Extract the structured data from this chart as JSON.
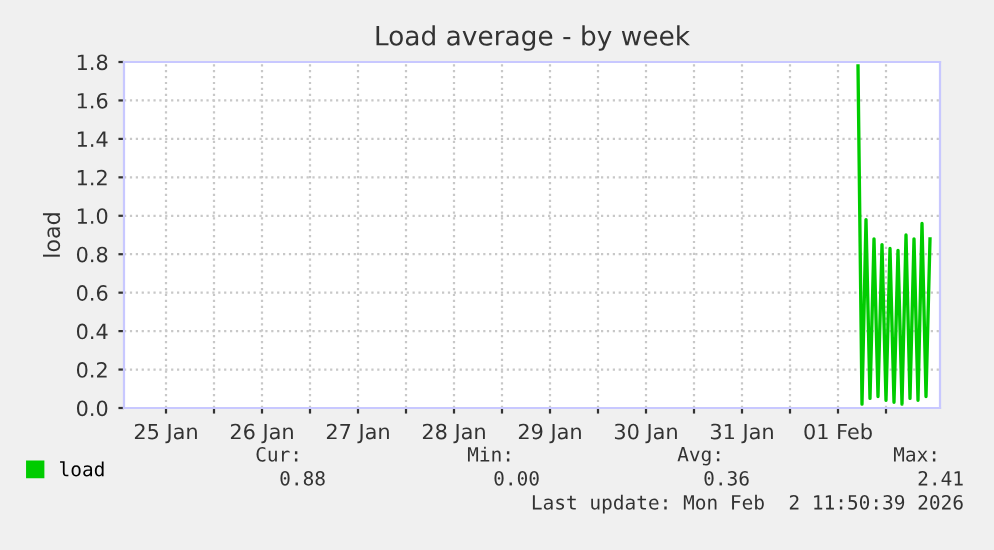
{
  "chart_data": {
    "type": "line",
    "title": "Load average - by week",
    "ylabel": "load",
    "x": [
      "2026-02-01T17:00",
      "2026-02-01T18:00",
      "2026-02-01T19:00",
      "2026-02-01T20:00",
      "2026-02-01T21:00",
      "2026-02-01T22:00",
      "2026-02-01T23:00",
      "2026-02-02T00:00",
      "2026-02-02T01:00",
      "2026-02-02T02:00",
      "2026-02-02T03:00",
      "2026-02-02T04:00",
      "2026-02-02T05:00",
      "2026-02-02T06:00",
      "2026-02-02T07:00",
      "2026-02-02T08:00",
      "2026-02-02T09:00",
      "2026-02-02T10:00",
      "2026-02-02T11:00"
    ],
    "series": [
      {
        "name": "load",
        "color": "#00cc00",
        "values": [
          1.78,
          0.02,
          0.98,
          0.05,
          0.88,
          0.06,
          0.85,
          0.04,
          0.83,
          0.03,
          0.82,
          0.02,
          0.9,
          0.05,
          0.88,
          0.04,
          0.96,
          0.06,
          0.88
        ]
      }
    ],
    "xlim": [
      "2026-01-25T01:30",
      "2026-02-02T13:30"
    ],
    "xticks": [
      {
        "value": "2026-01-25T12:00",
        "label": "25 Jan"
      },
      {
        "value": "2026-01-26T00:00",
        "label": null
      },
      {
        "value": "2026-01-26T12:00",
        "label": "26 Jan"
      },
      {
        "value": "2026-01-27T00:00",
        "label": null
      },
      {
        "value": "2026-01-27T12:00",
        "label": "27 Jan"
      },
      {
        "value": "2026-01-28T00:00",
        "label": null
      },
      {
        "value": "2026-01-28T12:00",
        "label": "28 Jan"
      },
      {
        "value": "2026-01-29T00:00",
        "label": null
      },
      {
        "value": "2026-01-29T12:00",
        "label": "29 Jan"
      },
      {
        "value": "2026-01-30T00:00",
        "label": null
      },
      {
        "value": "2026-01-30T12:00",
        "label": "30 Jan"
      },
      {
        "value": "2026-01-31T00:00",
        "label": null
      },
      {
        "value": "2026-01-31T12:00",
        "label": "31 Jan"
      },
      {
        "value": "2026-02-01T00:00",
        "label": null
      },
      {
        "value": "2026-02-01T12:00",
        "label": "01 Feb"
      },
      {
        "value": "2026-02-02T00:00",
        "label": null
      }
    ],
    "ylim": [
      0,
      1.8
    ],
    "yticks": [
      {
        "value": 0,
        "label": "0.0"
      },
      0.2,
      0.4,
      0.6,
      0.8,
      {
        "value": 1,
        "label": "1.0"
      },
      1.2,
      1.4,
      1.6,
      1.8
    ],
    "grid": true,
    "legend": "bottom left",
    "marker": "none",
    "line_style": "solid",
    "annotations": [
      "Cur:",
      "0.88",
      "Min:",
      "0.00",
      "Avg:",
      "0.36",
      "Max:",
      "2.41",
      "Last update: Mon Feb  2 11:50:39 2026"
    ]
  }
}
